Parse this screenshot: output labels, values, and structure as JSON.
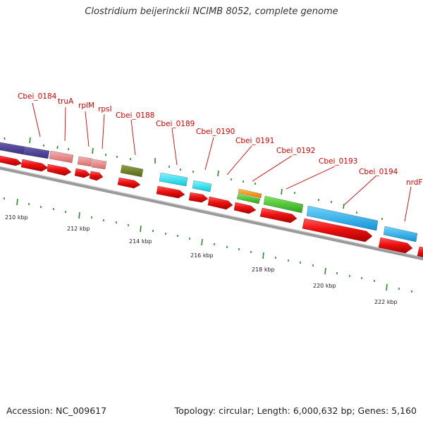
{
  "title": "Clostridium beijerinckii NCIMB 8052, complete genome",
  "footer": {
    "accession": "Accession: NC_009617",
    "summary": "Topology: circular; Length: 6,000,632 bp; Genes: 5,160"
  },
  "colors": {
    "label": "#cc0000",
    "backbone": "#808080",
    "cds": "#e8101a",
    "tick": "#2a8a2a"
  },
  "scale_labels": [
    "210 kbp",
    "212 kbp",
    "214 kbp",
    "216 kbp",
    "218 kbp",
    "220 kbp",
    "222 kbp"
  ],
  "gene_labels": [
    "Cbei_0184",
    "truA",
    "rplM",
    "rpsI",
    "Cbei_0188",
    "Cbei_0189",
    "Cbei_0190",
    "Cbei_0191",
    "Cbei_0192",
    "Cbei_0193",
    "Cbei_0194",
    "nrdF"
  ]
}
